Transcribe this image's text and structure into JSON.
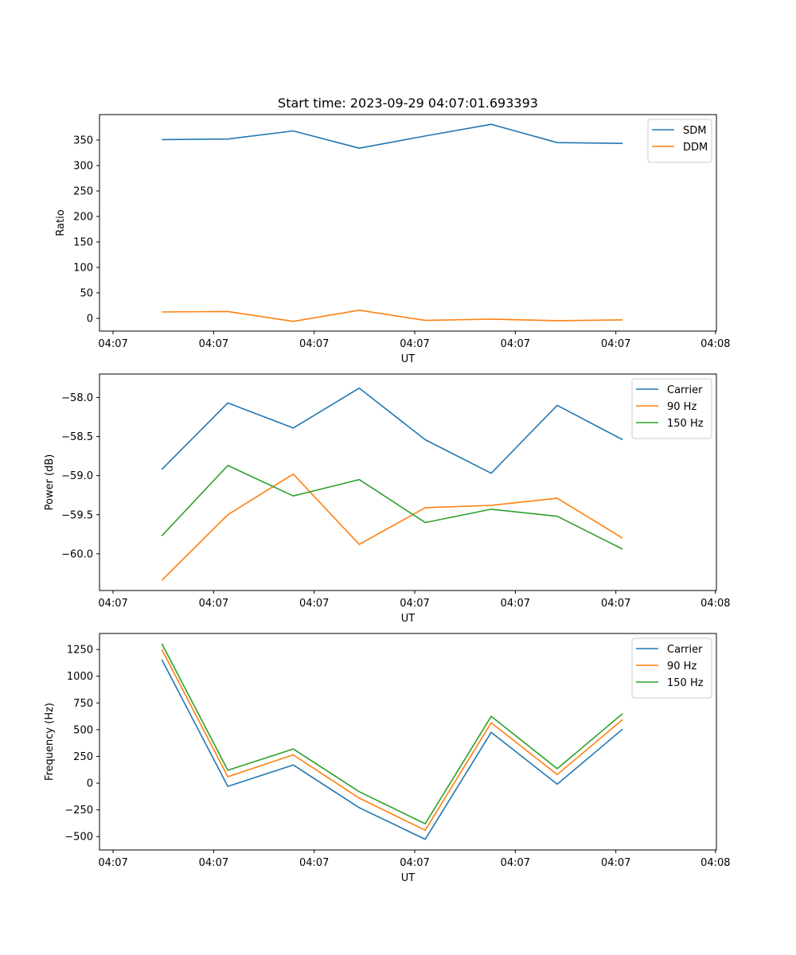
{
  "colors": {
    "blue": "#1f77b4",
    "orange": "#ff7f0e",
    "green": "#2ca02c"
  },
  "chart_data": [
    {
      "type": "line",
      "title": "Start time: 2023-09-29 04:07:01.693393",
      "xlabel": "UT",
      "ylabel": "Ratio",
      "x_ticks": [
        "04:07",
        "04:07",
        "04:07",
        "04:07",
        "04:07",
        "04:07",
        "04:07"
      ],
      "x_end_tick": "04:08",
      "ylim": [
        -25,
        400
      ],
      "y_ticks": [
        0,
        50,
        100,
        150,
        200,
        250,
        300,
        350
      ],
      "legend_position": "top-right",
      "series": [
        {
          "name": "SDM",
          "color": "#1f77b4",
          "values": [
            351,
            352,
            368,
            334,
            358,
            381,
            345,
            343.5
          ]
        },
        {
          "name": "DDM",
          "color": "#ff7f0e",
          "values": [
            12.5,
            13.5,
            -6,
            16,
            -4,
            -1.5,
            -4.5,
            -3
          ]
        }
      ]
    },
    {
      "type": "line",
      "title": "",
      "xlabel": "UT",
      "ylabel": "Power (dB)",
      "x_ticks": [
        "04:07",
        "04:07",
        "04:07",
        "04:07",
        "04:07",
        "04:07",
        "04:07"
      ],
      "x_end_tick": "04:08",
      "ylim": [
        -60.47,
        -57.7
      ],
      "y_ticks": [
        "-60.0",
        "-59.5",
        "-59.0",
        "-58.5",
        "-58.0"
      ],
      "legend_position": "top-right",
      "series": [
        {
          "name": "Carrier",
          "color": "#1f77b4",
          "values": [
            -58.92,
            -58.07,
            -58.39,
            -57.88,
            -58.54,
            -58.97,
            -58.1,
            -58.54
          ]
        },
        {
          "name": "90 Hz",
          "color": "#ff7f0e",
          "values": [
            -60.34,
            -59.5,
            -58.98,
            -59.88,
            -59.41,
            -59.38,
            -59.29,
            -59.8
          ]
        },
        {
          "name": "150 Hz",
          "color": "#2ca02c",
          "values": [
            -59.77,
            -58.87,
            -59.26,
            -59.05,
            -59.6,
            -59.43,
            -59.52,
            -59.94
          ]
        }
      ]
    },
    {
      "type": "line",
      "title": "",
      "xlabel": "UT",
      "ylabel": "Frequency (Hz)",
      "x_ticks": [
        "04:07",
        "04:07",
        "04:07",
        "04:07",
        "04:07",
        "04:07",
        "04:07"
      ],
      "x_end_tick": "04:08",
      "ylim": [
        -625,
        1400
      ],
      "y_ticks": [
        -500,
        -250,
        0,
        250,
        500,
        750,
        1000,
        1250
      ],
      "legend_position": "top-right",
      "series": [
        {
          "name": "Carrier",
          "color": "#1f77b4",
          "values": [
            1155,
            -30,
            170,
            -230,
            -525,
            475,
            -10,
            505
          ]
        },
        {
          "name": "90 Hz",
          "color": "#ff7f0e",
          "values": [
            1250,
            60,
            265,
            -140,
            -440,
            565,
            80,
            595
          ]
        },
        {
          "name": "150 Hz",
          "color": "#2ca02c",
          "values": [
            1305,
            120,
            320,
            -80,
            -380,
            625,
            135,
            650
          ]
        }
      ]
    }
  ]
}
